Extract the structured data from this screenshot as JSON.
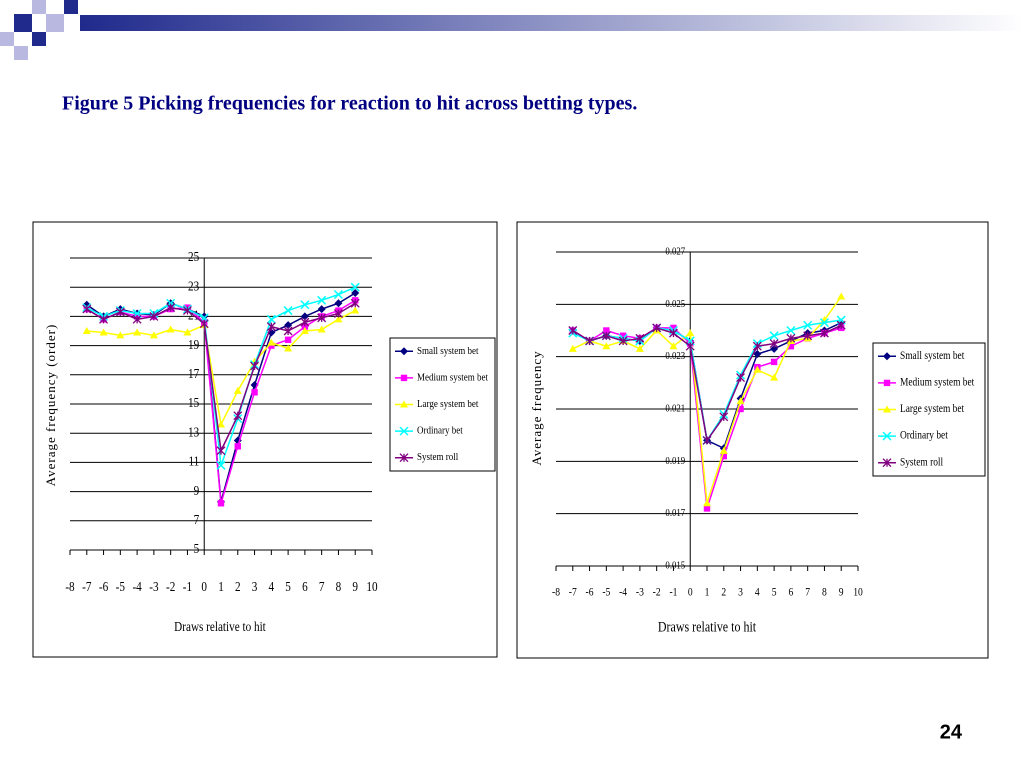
{
  "title": "Figure 5 Picking frequencies for reaction to hit across betting types.",
  "page_number": "24",
  "chart_data": [
    {
      "type": "line",
      "x_label": "Draws relative to hit",
      "y_label": "Average frequency (order)",
      "x": [
        -7,
        -6,
        -5,
        -4,
        -3,
        -2,
        -1,
        0,
        1,
        2,
        3,
        4,
        5,
        6,
        7,
        8,
        9
      ],
      "xlim": [
        -8,
        10
      ],
      "xticks": [
        -8,
        -7,
        -6,
        -5,
        -4,
        -3,
        -2,
        -1,
        0,
        1,
        2,
        3,
        4,
        5,
        6,
        7,
        8,
        9,
        10
      ],
      "ylim": [
        5,
        25
      ],
      "yticks": [
        5,
        7,
        9,
        11,
        13,
        15,
        17,
        19,
        21,
        23,
        25
      ],
      "y_axis_crosses": 0,
      "grid": true,
      "legend": "right",
      "series": [
        {
          "name": "Small system bet",
          "color": "#000080",
          "marker": "diamond",
          "values": [
            21.8,
            21.0,
            21.5,
            21.2,
            21.1,
            21.9,
            21.5,
            21.0,
            8.3,
            12.5,
            16.3,
            19.9,
            20.4,
            21.0,
            21.5,
            21.9,
            22.6
          ]
        },
        {
          "name": "Medium system bet",
          "color": "#ff00ff",
          "marker": "square",
          "values": [
            21.5,
            20.8,
            21.3,
            21.0,
            21.0,
            21.5,
            21.6,
            20.6,
            8.2,
            12.1,
            15.8,
            19.0,
            19.4,
            20.3,
            21.0,
            21.4,
            22.1
          ]
        },
        {
          "name": "Large system bet",
          "color": "#ffff00",
          "marker": "triangle",
          "values": [
            20.0,
            19.9,
            19.7,
            19.9,
            19.7,
            20.1,
            19.9,
            20.4,
            13.6,
            15.9,
            17.9,
            19.2,
            18.8,
            20.0,
            20.1,
            20.8,
            21.4
          ]
        },
        {
          "name": "Ordinary bet",
          "color": "#00ffff",
          "marker": "x",
          "values": [
            21.6,
            21.0,
            21.4,
            21.2,
            21.2,
            21.9,
            21.5,
            20.9,
            10.8,
            14.0,
            17.7,
            20.8,
            21.4,
            21.8,
            22.1,
            22.5,
            23.0
          ]
        },
        {
          "name": "System roll",
          "color": "#800080",
          "marker": "star",
          "values": [
            21.5,
            20.8,
            21.3,
            20.8,
            21.0,
            21.6,
            21.4,
            20.5,
            11.8,
            14.2,
            17.6,
            20.3,
            20.0,
            20.6,
            20.9,
            21.2,
            21.9
          ]
        }
      ]
    },
    {
      "type": "line",
      "x_label": "Draws relative to hit",
      "y_label": "Average frequency",
      "x": [
        -7,
        -6,
        -5,
        -4,
        -3,
        -2,
        -1,
        0,
        1,
        2,
        3,
        4,
        5,
        6,
        7,
        8,
        9
      ],
      "xlim": [
        -8,
        10
      ],
      "xticks": [
        -8,
        -7,
        -6,
        -5,
        -4,
        -3,
        -2,
        -1,
        0,
        1,
        2,
        3,
        4,
        5,
        6,
        7,
        8,
        9,
        10
      ],
      "ylim": [
        0.015,
        0.027
      ],
      "yticks": [
        0.015,
        0.017,
        0.019,
        0.021,
        0.023,
        0.025,
        0.027
      ],
      "y_axis_crosses": 0,
      "grid": true,
      "legend": "right",
      "series": [
        {
          "name": "Small system bet",
          "color": "#000080",
          "marker": "diamond",
          "values": [
            0.024,
            0.0236,
            0.0238,
            0.0237,
            0.0236,
            0.0241,
            0.024,
            0.0236,
            0.0198,
            0.0195,
            0.0214,
            0.0231,
            0.0233,
            0.0236,
            0.0239,
            0.024,
            0.0243
          ]
        },
        {
          "name": "Medium system bet",
          "color": "#ff00ff",
          "marker": "square",
          "values": [
            0.024,
            0.0236,
            0.024,
            0.0238,
            0.0237,
            0.0241,
            0.0241,
            0.0235,
            0.0172,
            0.0192,
            0.021,
            0.0226,
            0.0228,
            0.0234,
            0.0237,
            0.0239,
            0.0241
          ]
        },
        {
          "name": "Large system bet",
          "color": "#ffff00",
          "marker": "triangle",
          "values": [
            0.0233,
            0.0236,
            0.0234,
            0.0236,
            0.0233,
            0.024,
            0.0234,
            0.0239,
            0.0174,
            0.0194,
            0.0213,
            0.0225,
            0.0222,
            0.0236,
            0.0237,
            0.0244,
            0.0253
          ]
        },
        {
          "name": "Ordinary bet",
          "color": "#00ffff",
          "marker": "x",
          "values": [
            0.0239,
            0.0236,
            0.0238,
            0.0237,
            0.0236,
            0.0241,
            0.024,
            0.0236,
            0.0198,
            0.0208,
            0.0223,
            0.0235,
            0.0238,
            0.024,
            0.0242,
            0.0243,
            0.0244
          ]
        },
        {
          "name": "System roll",
          "color": "#800080",
          "marker": "star",
          "values": [
            0.024,
            0.0236,
            0.0238,
            0.0236,
            0.0237,
            0.0241,
            0.0239,
            0.0234,
            0.0198,
            0.0207,
            0.0222,
            0.0234,
            0.0235,
            0.0237,
            0.0238,
            0.0239,
            0.0242
          ]
        }
      ]
    }
  ]
}
